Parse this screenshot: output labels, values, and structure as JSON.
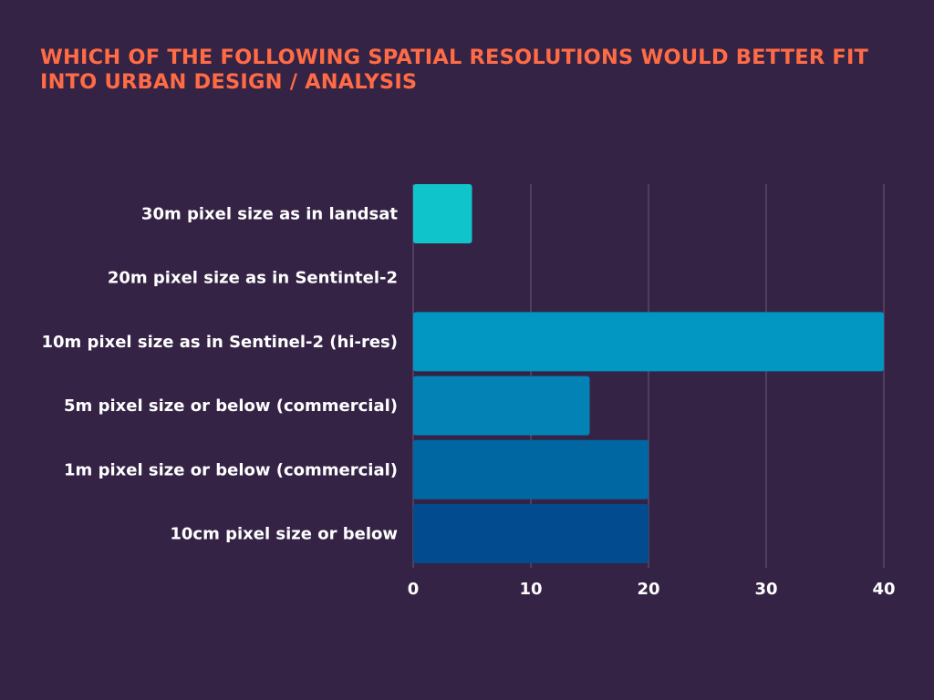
{
  "chart_data": {
    "type": "bar",
    "orientation": "horizontal",
    "title": "WHICH OF THE FOLLOWING SPATIAL RESOLUTIONS WOULD BETTER FIT INTO URBAN DESIGN / ANALYSIS",
    "categories": [
      "30m pixel size as in landsat",
      "20m pixel size as in Sentintel-2",
      "10m pixel size as in Sentinel-2 (hi-res)",
      "5m pixel size or below (commercial)",
      "1m pixel size or below (commercial)",
      "10cm pixel size or below"
    ],
    "values": [
      5,
      0,
      40,
      15,
      20,
      20
    ],
    "bar_colors": [
      "#10c4cc",
      "#0aafc8",
      "#0296c2",
      "#0282b5",
      "#0167a3",
      "#024b8e"
    ],
    "xlim": [
      0,
      40
    ],
    "xticks": [
      "0",
      "10",
      "20",
      "30",
      "40"
    ],
    "grid": "vertical",
    "legend": "none"
  }
}
